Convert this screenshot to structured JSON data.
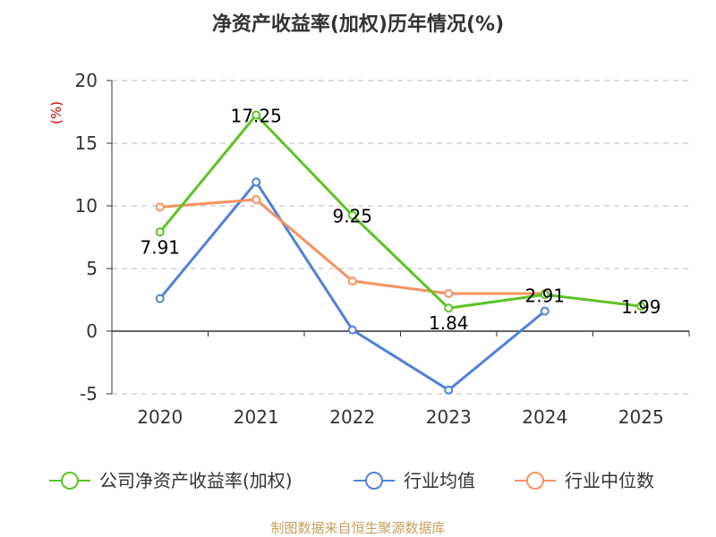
{
  "title": "净资产收益率(加权)历年情况(%)",
  "source": "制图数据来自恒生聚源数据库",
  "colors": {
    "company": "#5bc424",
    "industry_avg": "#4f81dc",
    "industry_median": "#f59261",
    "axis": "#333333",
    "grid": "#bbbbbb",
    "unit": "#cc0000",
    "source": "#c8a15a"
  },
  "chart_data": {
    "type": "line",
    "title": "净资产收益率(加权)历年情况(%)",
    "xlabel": "",
    "ylabel": "(%)",
    "categories": [
      "2020",
      "2021",
      "2022",
      "2023",
      "2024",
      "2025"
    ],
    "ylim": [
      -5,
      20
    ],
    "yticks": [
      20,
      15,
      10,
      5,
      0,
      -5
    ],
    "grid": true,
    "legend_position": "bottom",
    "series": [
      {
        "name": "公司净资产收益率(加权)",
        "values": [
          7.91,
          17.25,
          9.25,
          1.84,
          2.91,
          1.99
        ],
        "labels": [
          "7.91",
          "17.25",
          "9.25",
          "1.84",
          "2.91",
          "1.99"
        ]
      },
      {
        "name": "行业均值",
        "values": [
          2.6,
          11.9,
          0.1,
          -4.7,
          1.6,
          null
        ]
      },
      {
        "name": "行业中位数",
        "values": [
          9.9,
          10.5,
          4.0,
          3.0,
          3.0,
          null
        ]
      }
    ]
  }
}
